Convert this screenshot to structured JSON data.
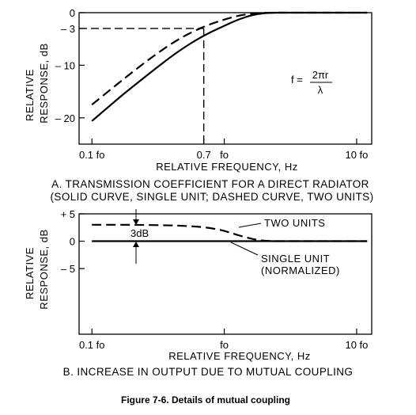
{
  "figure_title": "Figure 7-6. Details of mutual coupling",
  "chart_data": [
    {
      "type": "line",
      "caption_line1": "A. TRANSMISSION COEFFICIENT FOR A DIRECT RADIATOR",
      "caption_line2": "(SOLID CURVE, SINGLE UNIT; DASHED CURVE, TWO UNITS)",
      "xlabel": "RELATIVE FREQUENCY, Hz",
      "ylabel_line1": "RELATIVE",
      "ylabel_line2": "RESPONSE, dB",
      "x_scale": "log",
      "xlim": [
        0.08,
        13
      ],
      "ylim": [
        -25,
        0
      ],
      "x_ticks": [
        {
          "value": 0.1,
          "label": "0.1 fo"
        },
        {
          "value": 0.7,
          "label": "0.7"
        },
        {
          "value": 1,
          "label": "fo"
        },
        {
          "value": 10,
          "label": "10 fo"
        }
      ],
      "y_ticks": [
        {
          "value": 0,
          "label": "0"
        },
        {
          "value": -3,
          "label": "– 3"
        },
        {
          "value": -10,
          "label": "– 10"
        },
        {
          "value": -20,
          "label": "– 20"
        }
      ],
      "formula": {
        "lhs": "f  =",
        "numerator": "2πr",
        "denominator": "λ"
      },
      "reference_lines": {
        "x": 0.7,
        "y": -3
      },
      "series": [
        {
          "style": "solid",
          "x": [
            0.1,
            0.15,
            0.2,
            0.3,
            0.45,
            0.7,
            1.0,
            1.3,
            1.7,
            2.2,
            3.0,
            5.0,
            10.0,
            12.0
          ],
          "y": [
            -20.6,
            -16.8,
            -14.2,
            -10.7,
            -7.3,
            -4.3,
            -2.5,
            -1.2,
            -0.3,
            0,
            0,
            0,
            0,
            0
          ]
        },
        {
          "style": "dashed",
          "x": [
            0.1,
            0.15,
            0.2,
            0.3,
            0.45,
            0.7,
            1.0,
            1.3,
            1.7,
            2.2,
            3.0,
            5.0,
            10.0,
            12.0
          ],
          "y": [
            -17.5,
            -13.9,
            -11.4,
            -8.0,
            -5.0,
            -2.6,
            -1.3,
            -0.5,
            -0.1,
            0,
            0,
            0,
            0,
            0
          ]
        }
      ]
    },
    {
      "type": "line",
      "caption_line1": "B. INCREASE IN OUTPUT DUE TO MUTUAL COUPLING",
      "xlabel": "RELATIVE FREQUENCY, Hz",
      "ylabel_line1": "RELATIVE",
      "ylabel_line2": "RESPONSE, dB",
      "x_scale": "log",
      "xlim": [
        0.08,
        13
      ],
      "ylim": [
        -17,
        5
      ],
      "x_ticks": [
        {
          "value": 0.1,
          "label": "0.1 fo"
        },
        {
          "value": 1,
          "label": "fo"
        },
        {
          "value": 10,
          "label": "10 fo"
        }
      ],
      "y_ticks": [
        {
          "value": 5,
          "label": "+ 5"
        },
        {
          "value": 0,
          "label": "0"
        },
        {
          "value": -5,
          "label": "– 5"
        }
      ],
      "annotation_gap": "3dB",
      "series": [
        {
          "name": "TWO UNITS",
          "style": "dashed",
          "x": [
            0.1,
            0.2,
            0.4,
            0.6,
            0.8,
            1.0,
            1.2,
            1.5,
            1.8,
            2.2,
            3.0,
            5.0,
            10.0,
            12.0
          ],
          "y": [
            3.0,
            3.0,
            2.9,
            2.7,
            2.4,
            1.9,
            1.3,
            0.6,
            0.2,
            0,
            0,
            0,
            0,
            0
          ]
        },
        {
          "name": "SINGLE UNIT",
          "name_line2": "(NORMALIZED)",
          "style": "solid",
          "x": [
            0.1,
            12.0
          ],
          "y": [
            0,
            0
          ]
        }
      ]
    }
  ]
}
